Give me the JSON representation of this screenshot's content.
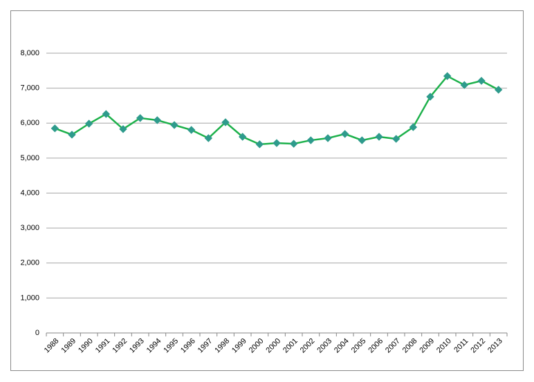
{
  "chart_data": {
    "type": "line",
    "categories": [
      "1988",
      "1989",
      "1990",
      "1991",
      "1992",
      "1993",
      "1994",
      "1995",
      "1996",
      "1997",
      "1998",
      "1999",
      "2000",
      "2000",
      "2001",
      "2002",
      "2003",
      "2004",
      "2005",
      "2006",
      "2007",
      "2008",
      "2009",
      "2010",
      "2011",
      "2012",
      "2013"
    ],
    "series": [
      {
        "color": "#1db14b",
        "marker_color": "#2e9b8c",
        "values": [
          5850,
          5670,
          5985,
          6260,
          5830,
          6145,
          6085,
          5945,
          5805,
          5570,
          6025,
          5610,
          5395,
          5430,
          5410,
          5510,
          5570,
          5690,
          5510,
          5610,
          5550,
          5885,
          6755,
          7345,
          7090,
          7210,
          6955
        ]
      }
    ],
    "ylim": [
      0,
      8000
    ],
    "yticks": [
      0,
      {
        "value": 1000,
        "label": "1,000"
      },
      {
        "value": 2000,
        "label": "2,000"
      },
      {
        "value": 3000,
        "label": "3,000"
      },
      {
        "value": 4000,
        "label": "4,000"
      },
      {
        "value": 5000,
        "label": "5,000"
      },
      {
        "value": 6000,
        "label": "6,000"
      },
      {
        "value": 7000,
        "label": "7,000"
      },
      {
        "value": 8000,
        "label": "8,000"
      }
    ],
    "grid": true
  }
}
